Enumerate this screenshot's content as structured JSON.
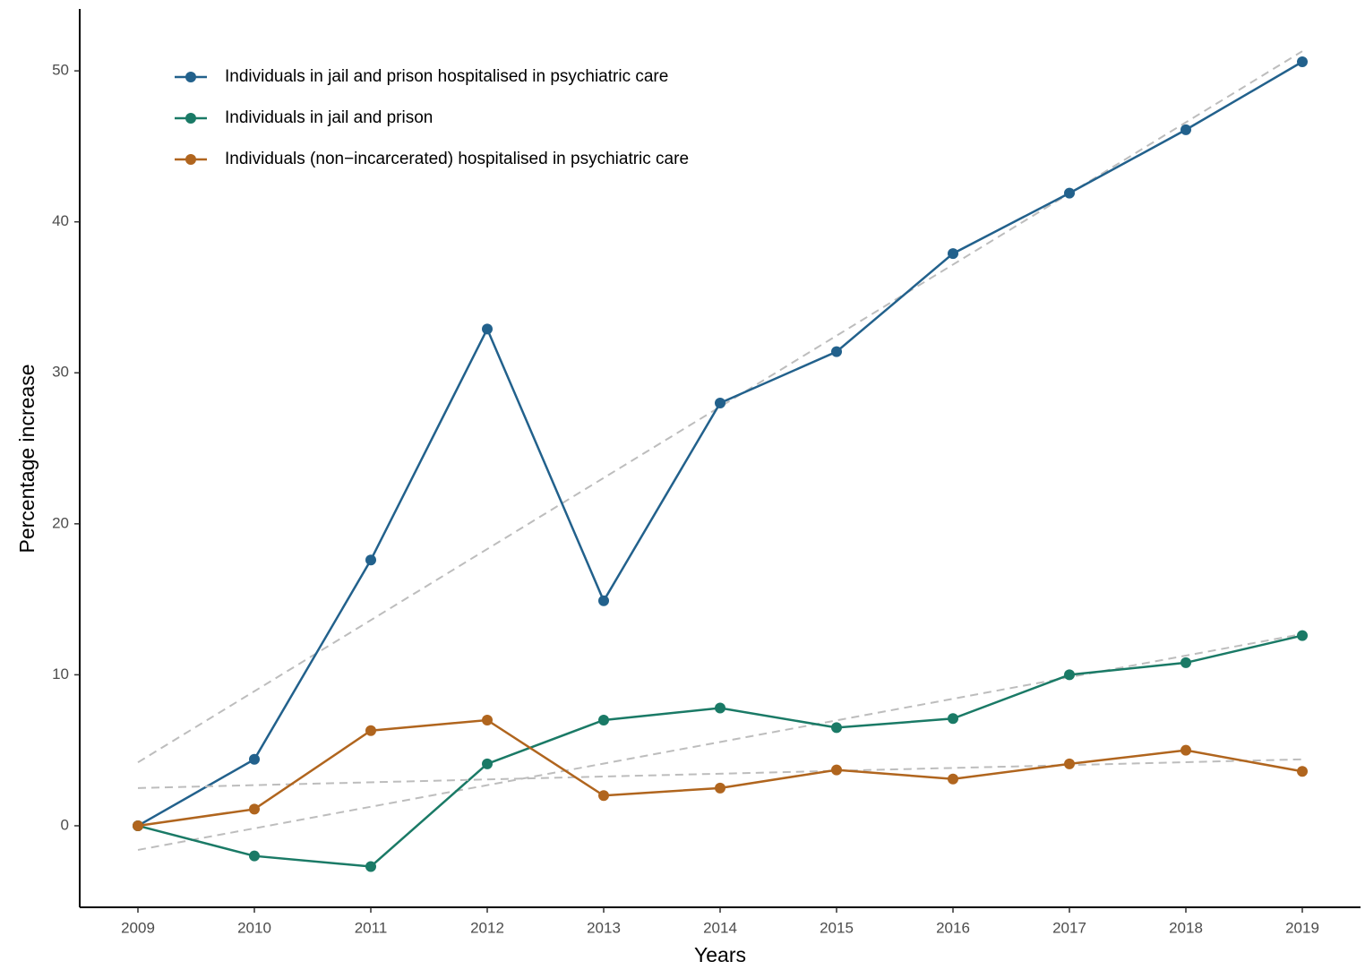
{
  "chart_data": {
    "type": "line",
    "xlabel": "Years",
    "ylabel": "Percentage increase",
    "x": [
      2009,
      2010,
      2011,
      2012,
      2013,
      2014,
      2015,
      2016,
      2017,
      2018,
      2019
    ],
    "xlim": [
      2008.5,
      2019.5
    ],
    "xticks": [
      2009,
      2010,
      2011,
      2012,
      2013,
      2014,
      2015,
      2016,
      2017,
      2018,
      2019
    ],
    "ylim": [
      -5.4,
      54.1
    ],
    "yticks": [
      0,
      10,
      20,
      30,
      40,
      50
    ],
    "grid": false,
    "legend": "top-left",
    "trend_color": "#bdbdbd",
    "series": [
      {
        "name": "Individuals in jail and prison hospitalised in psychiatric care",
        "color": "#22618c",
        "values": [
          0,
          4.4,
          17.6,
          32.9,
          14.9,
          28.0,
          31.4,
          37.9,
          41.9,
          46.1,
          50.6
        ],
        "trend": [
          4.2,
          51.3
        ]
      },
      {
        "name": "Individuals in jail and prison",
        "color": "#1a7a66",
        "values": [
          0,
          -2.0,
          -2.7,
          4.1,
          7.0,
          7.8,
          6.5,
          7.1,
          10.0,
          10.8,
          12.6
        ],
        "trend": [
          -1.6,
          12.7
        ]
      },
      {
        "name": "Individuals (non−incarcerated) hospitalised in psychiatric care",
        "color": "#b0651e",
        "values": [
          0,
          1.1,
          6.3,
          7.0,
          2.0,
          2.5,
          3.7,
          3.1,
          4.1,
          5.0,
          3.6
        ],
        "trend": [
          2.5,
          4.4
        ]
      }
    ]
  }
}
